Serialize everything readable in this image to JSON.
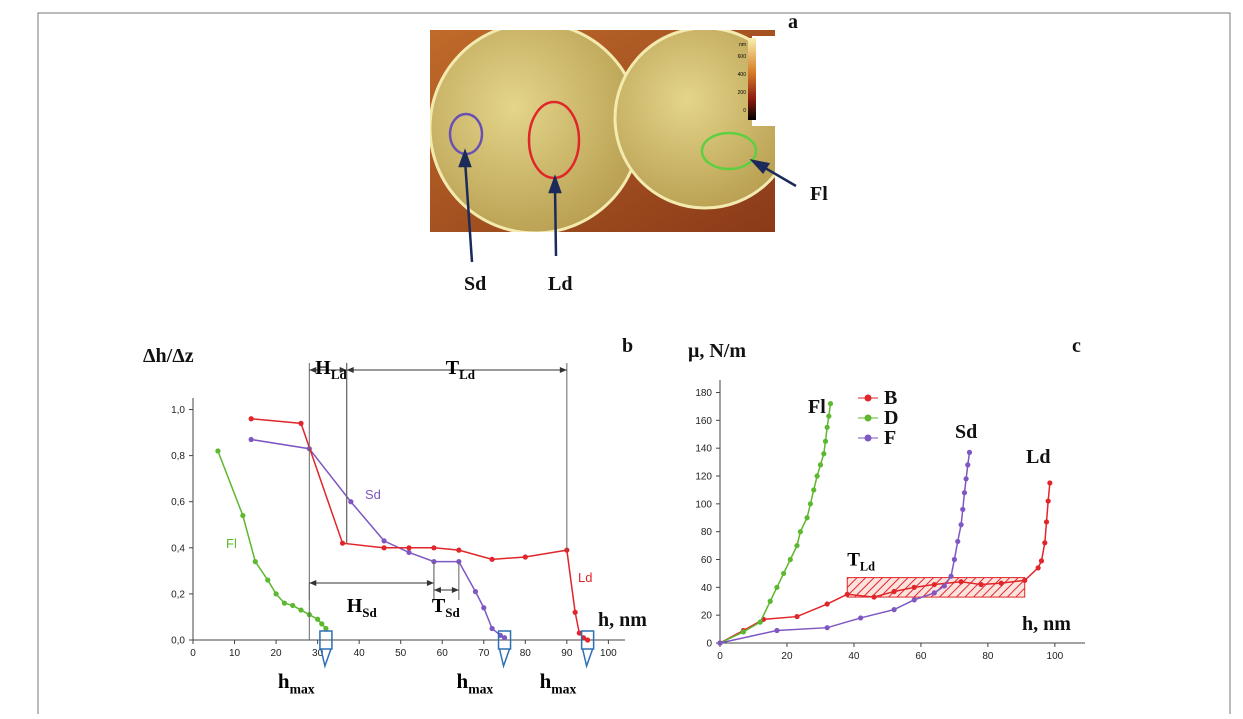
{
  "panel_a": {
    "label": "a",
    "regions": [
      "Sd",
      "Ld",
      "Fl"
    ],
    "colorbar": {
      "unit": "nm",
      "ticks": [
        600,
        400,
        200,
        0
      ]
    }
  },
  "chart_data": [
    {
      "type": "line",
      "panel_label": "b",
      "xlabel": "h, nm",
      "ylabel": "Δh/Δz",
      "xlim": [
        0,
        104
      ],
      "ylim": [
        0,
        1.05
      ],
      "xticks": [
        0,
        10,
        20,
        30,
        40,
        50,
        60,
        70,
        80,
        90,
        100
      ],
      "yticks": [
        {
          "value": 0,
          "label": "0,0"
        },
        {
          "value": 0.2,
          "label": "0,2"
        },
        {
          "value": 0.4,
          "label": "0,4"
        },
        {
          "value": 0.6,
          "label": "0,6"
        },
        {
          "value": 0.8,
          "label": "0,8"
        },
        {
          "value": 1.0,
          "label": "1,0"
        }
      ],
      "series": [
        {
          "name": "Fl",
          "color": "#5cb82e",
          "x": [
            6,
            12,
            15,
            18,
            20,
            22,
            24,
            26,
            28,
            30,
            31,
            32
          ],
          "values": [
            0.82,
            0.54,
            0.34,
            0.26,
            0.2,
            0.16,
            0.15,
            0.13,
            0.11,
            0.09,
            0.07,
            0.05
          ]
        },
        {
          "name": "Sd",
          "color": "#7e57c2",
          "x": [
            14,
            28,
            38,
            46,
            52,
            58,
            64,
            68,
            70,
            72,
            74,
            75
          ],
          "values": [
            0.87,
            0.83,
            0.6,
            0.43,
            0.38,
            0.34,
            0.34,
            0.21,
            0.14,
            0.05,
            0.02,
            0.01
          ]
        },
        {
          "name": "Ld",
          "color": "#e0262b",
          "x": [
            14,
            26,
            36,
            46,
            52,
            58,
            64,
            72,
            80,
            90,
            92,
            93,
            94,
            95
          ],
          "values": [
            0.96,
            0.94,
            0.42,
            0.4,
            0.4,
            0.4,
            0.39,
            0.35,
            0.36,
            0.39,
            0.12,
            0.03,
            0.01,
            0.0
          ]
        }
      ],
      "spans": [
        {
          "label": "H",
          "sub": "Ld",
          "from": 28,
          "to": 37
        },
        {
          "label": "T",
          "sub": "Ld",
          "from": 37,
          "to": 90
        },
        {
          "label": "H",
          "sub": "Sd",
          "from": 28,
          "to": 58
        },
        {
          "label": "T",
          "sub": "Sd",
          "from": 58,
          "to": 64
        }
      ],
      "hmax": {
        "label": "h",
        "sub": "max",
        "x": [
          32,
          75,
          95
        ]
      }
    },
    {
      "type": "line",
      "panel_label": "c",
      "xlabel": "h, nm",
      "ylabel": "μ, N/m",
      "xlim": [
        0,
        109
      ],
      "ylim": [
        0,
        189
      ],
      "xticks": [
        0,
        20,
        40,
        60,
        80,
        100
      ],
      "yticks": [
        0,
        20,
        40,
        60,
        80,
        100,
        120,
        140,
        160,
        180
      ],
      "series": [
        {
          "name": "B",
          "color": "#e0262b",
          "x": [
            0,
            7,
            13,
            23,
            32,
            38,
            46,
            52,
            58,
            64,
            72,
            78,
            84,
            91,
            95,
            96,
            97,
            97.5,
            98,
            98.5
          ],
          "values": [
            0,
            9,
            17,
            19,
            28,
            35,
            33,
            37,
            40,
            42,
            44,
            42,
            43,
            45,
            54,
            59,
            72,
            87,
            102,
            115
          ]
        },
        {
          "name": "D",
          "color": "#5cb82e",
          "x": [
            0,
            7,
            12,
            15,
            17,
            19,
            21,
            23,
            24,
            26,
            27,
            28,
            29,
            30,
            31,
            31.5,
            32,
            32.5,
            33
          ],
          "values": [
            0,
            8,
            15,
            30,
            40,
            50,
            60,
            70,
            80,
            90,
            100,
            110,
            120,
            128,
            136,
            145,
            155,
            163,
            172
          ]
        },
        {
          "name": "F",
          "color": "#7e57c2",
          "x": [
            0,
            17,
            32,
            42,
            52,
            58,
            64,
            67,
            69,
            70,
            71,
            72,
            72.5,
            73,
            73.5,
            74,
            74.5
          ],
          "values": [
            0,
            9,
            11,
            18,
            24,
            31,
            36,
            41,
            48,
            60,
            73,
            85,
            96,
            108,
            118,
            128,
            137
          ]
        }
      ],
      "curve_labels": [
        "Fl",
        "Sd",
        "Ld"
      ],
      "band": {
        "label": "T",
        "sub": "Ld",
        "x": [
          38,
          91
        ],
        "y": [
          33,
          47
        ]
      }
    }
  ]
}
